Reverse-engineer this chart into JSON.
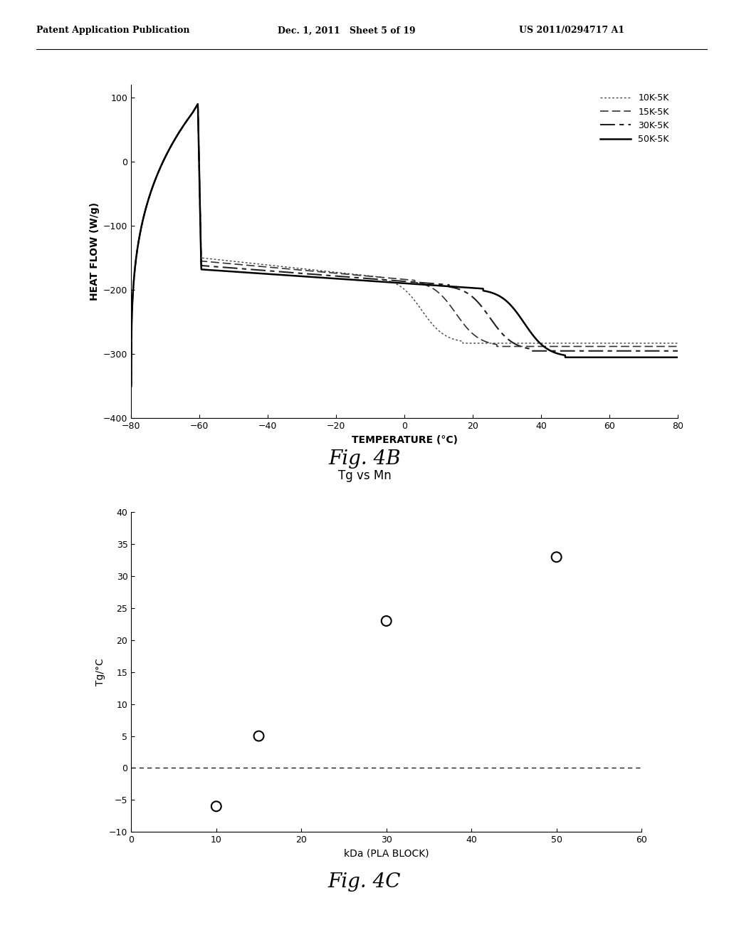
{
  "header_left": "Patent Application Publication",
  "header_mid": "Dec. 1, 2011   Sheet 5 of 19",
  "header_right": "US 2011/0294717 A1",
  "fig4b": {
    "xlabel": "TEMPERATURE (°C)",
    "ylabel": "HEAT FLOW (W/g)",
    "xlim": [
      -80,
      80
    ],
    "ylim": [
      -400,
      120
    ],
    "yticks": [
      -400,
      -300,
      -200,
      -100,
      0,
      100
    ],
    "xticks": [
      -80,
      -60,
      -40,
      -20,
      0,
      20,
      40,
      60,
      80
    ],
    "caption": "Fig. 4B",
    "legend_labels": [
      "10K-5K",
      "15K-5K",
      "30K-5K",
      "50K-5K"
    ],
    "tg_values": [
      5,
      15,
      25,
      35
    ],
    "final_vals": [
      -283,
      -288,
      -295,
      -305
    ],
    "post_spike_vals": [
      -150,
      -155,
      -162,
      -168
    ]
  },
  "fig4c": {
    "title": "Tg vs Mn",
    "xlabel": "kDa (PLA BLOCK)",
    "ylabel": "Tg/°C",
    "xlim": [
      0,
      60
    ],
    "ylim": [
      -10,
      40
    ],
    "yticks": [
      -10,
      -5,
      0,
      5,
      10,
      15,
      20,
      25,
      30,
      35,
      40
    ],
    "xticks": [
      0,
      10,
      20,
      30,
      40,
      50,
      60
    ],
    "caption": "Fig. 4C",
    "scatter_x": [
      10,
      15,
      30,
      50
    ],
    "scatter_y": [
      -6,
      5,
      23,
      33
    ],
    "hline_y": 0
  },
  "bg_color": "#ffffff"
}
